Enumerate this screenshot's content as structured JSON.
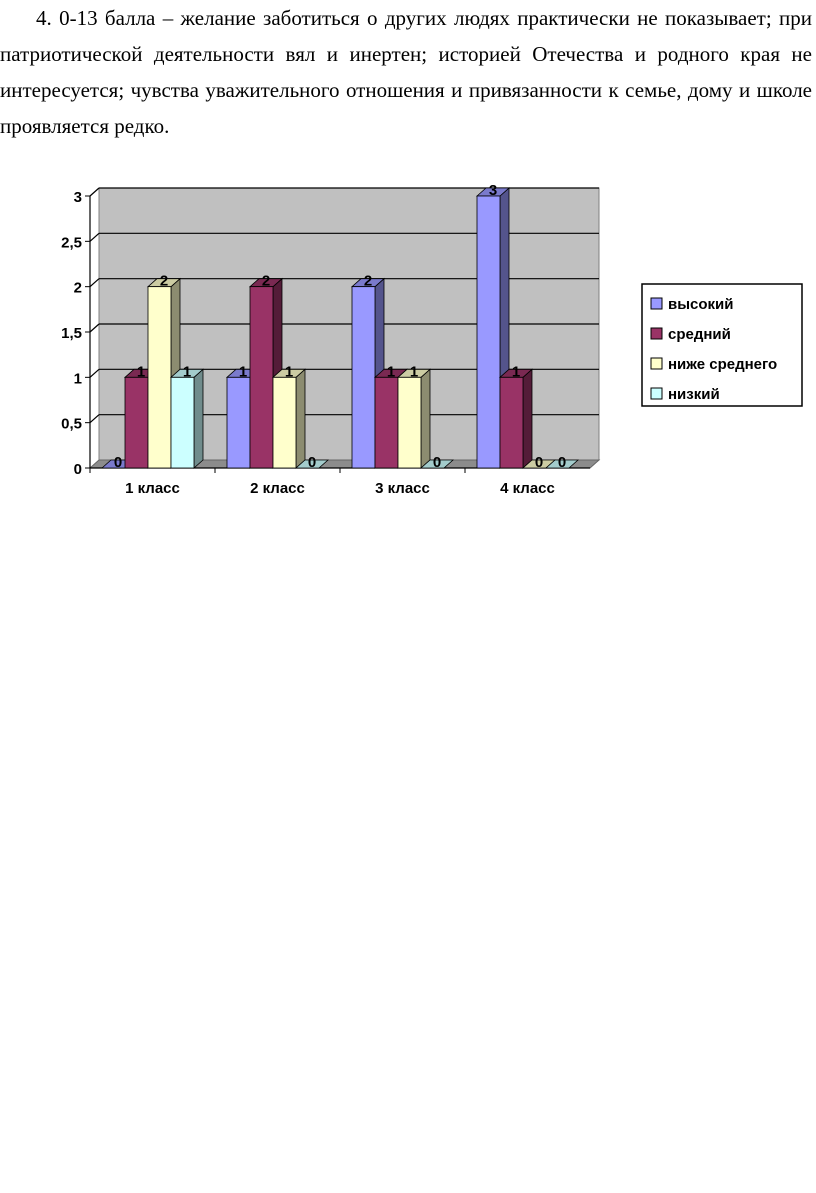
{
  "document": {
    "paragraph": "4. 0-13 балла – желание заботиться о других людях практически не показывает; при патриотической деятельности вял и инертен; историей Отечества и родного края не интересуется; чувства уважительного отношения и привязанности к семье, дому и школе проявляется редко."
  },
  "chart_data": {
    "type": "bar",
    "categories": [
      "1 класс",
      "2 класс",
      "3 класс",
      "4 класс"
    ],
    "series": [
      {
        "name": "высокий",
        "values": [
          0,
          1,
          2,
          3
        ],
        "color": "#9999ff"
      },
      {
        "name": "средний",
        "values": [
          1,
          2,
          1,
          1
        ],
        "color": "#993366"
      },
      {
        "name": "ниже среднего",
        "values": [
          2,
          1,
          1,
          0
        ],
        "color": "#ffffcc"
      },
      {
        "name": "низкий",
        "values": [
          1,
          0,
          0,
          0
        ],
        "color": "#ccffff"
      }
    ],
    "y_ticks": [
      "0",
      "0,5",
      "1",
      "1,5",
      "2",
      "2,5",
      "3"
    ],
    "ylim": [
      0,
      3
    ],
    "title": "",
    "xlabel": "",
    "ylabel": "",
    "grid": true,
    "legend_position": "right",
    "plot_background": "#c0c0c0",
    "data_labels": true
  }
}
